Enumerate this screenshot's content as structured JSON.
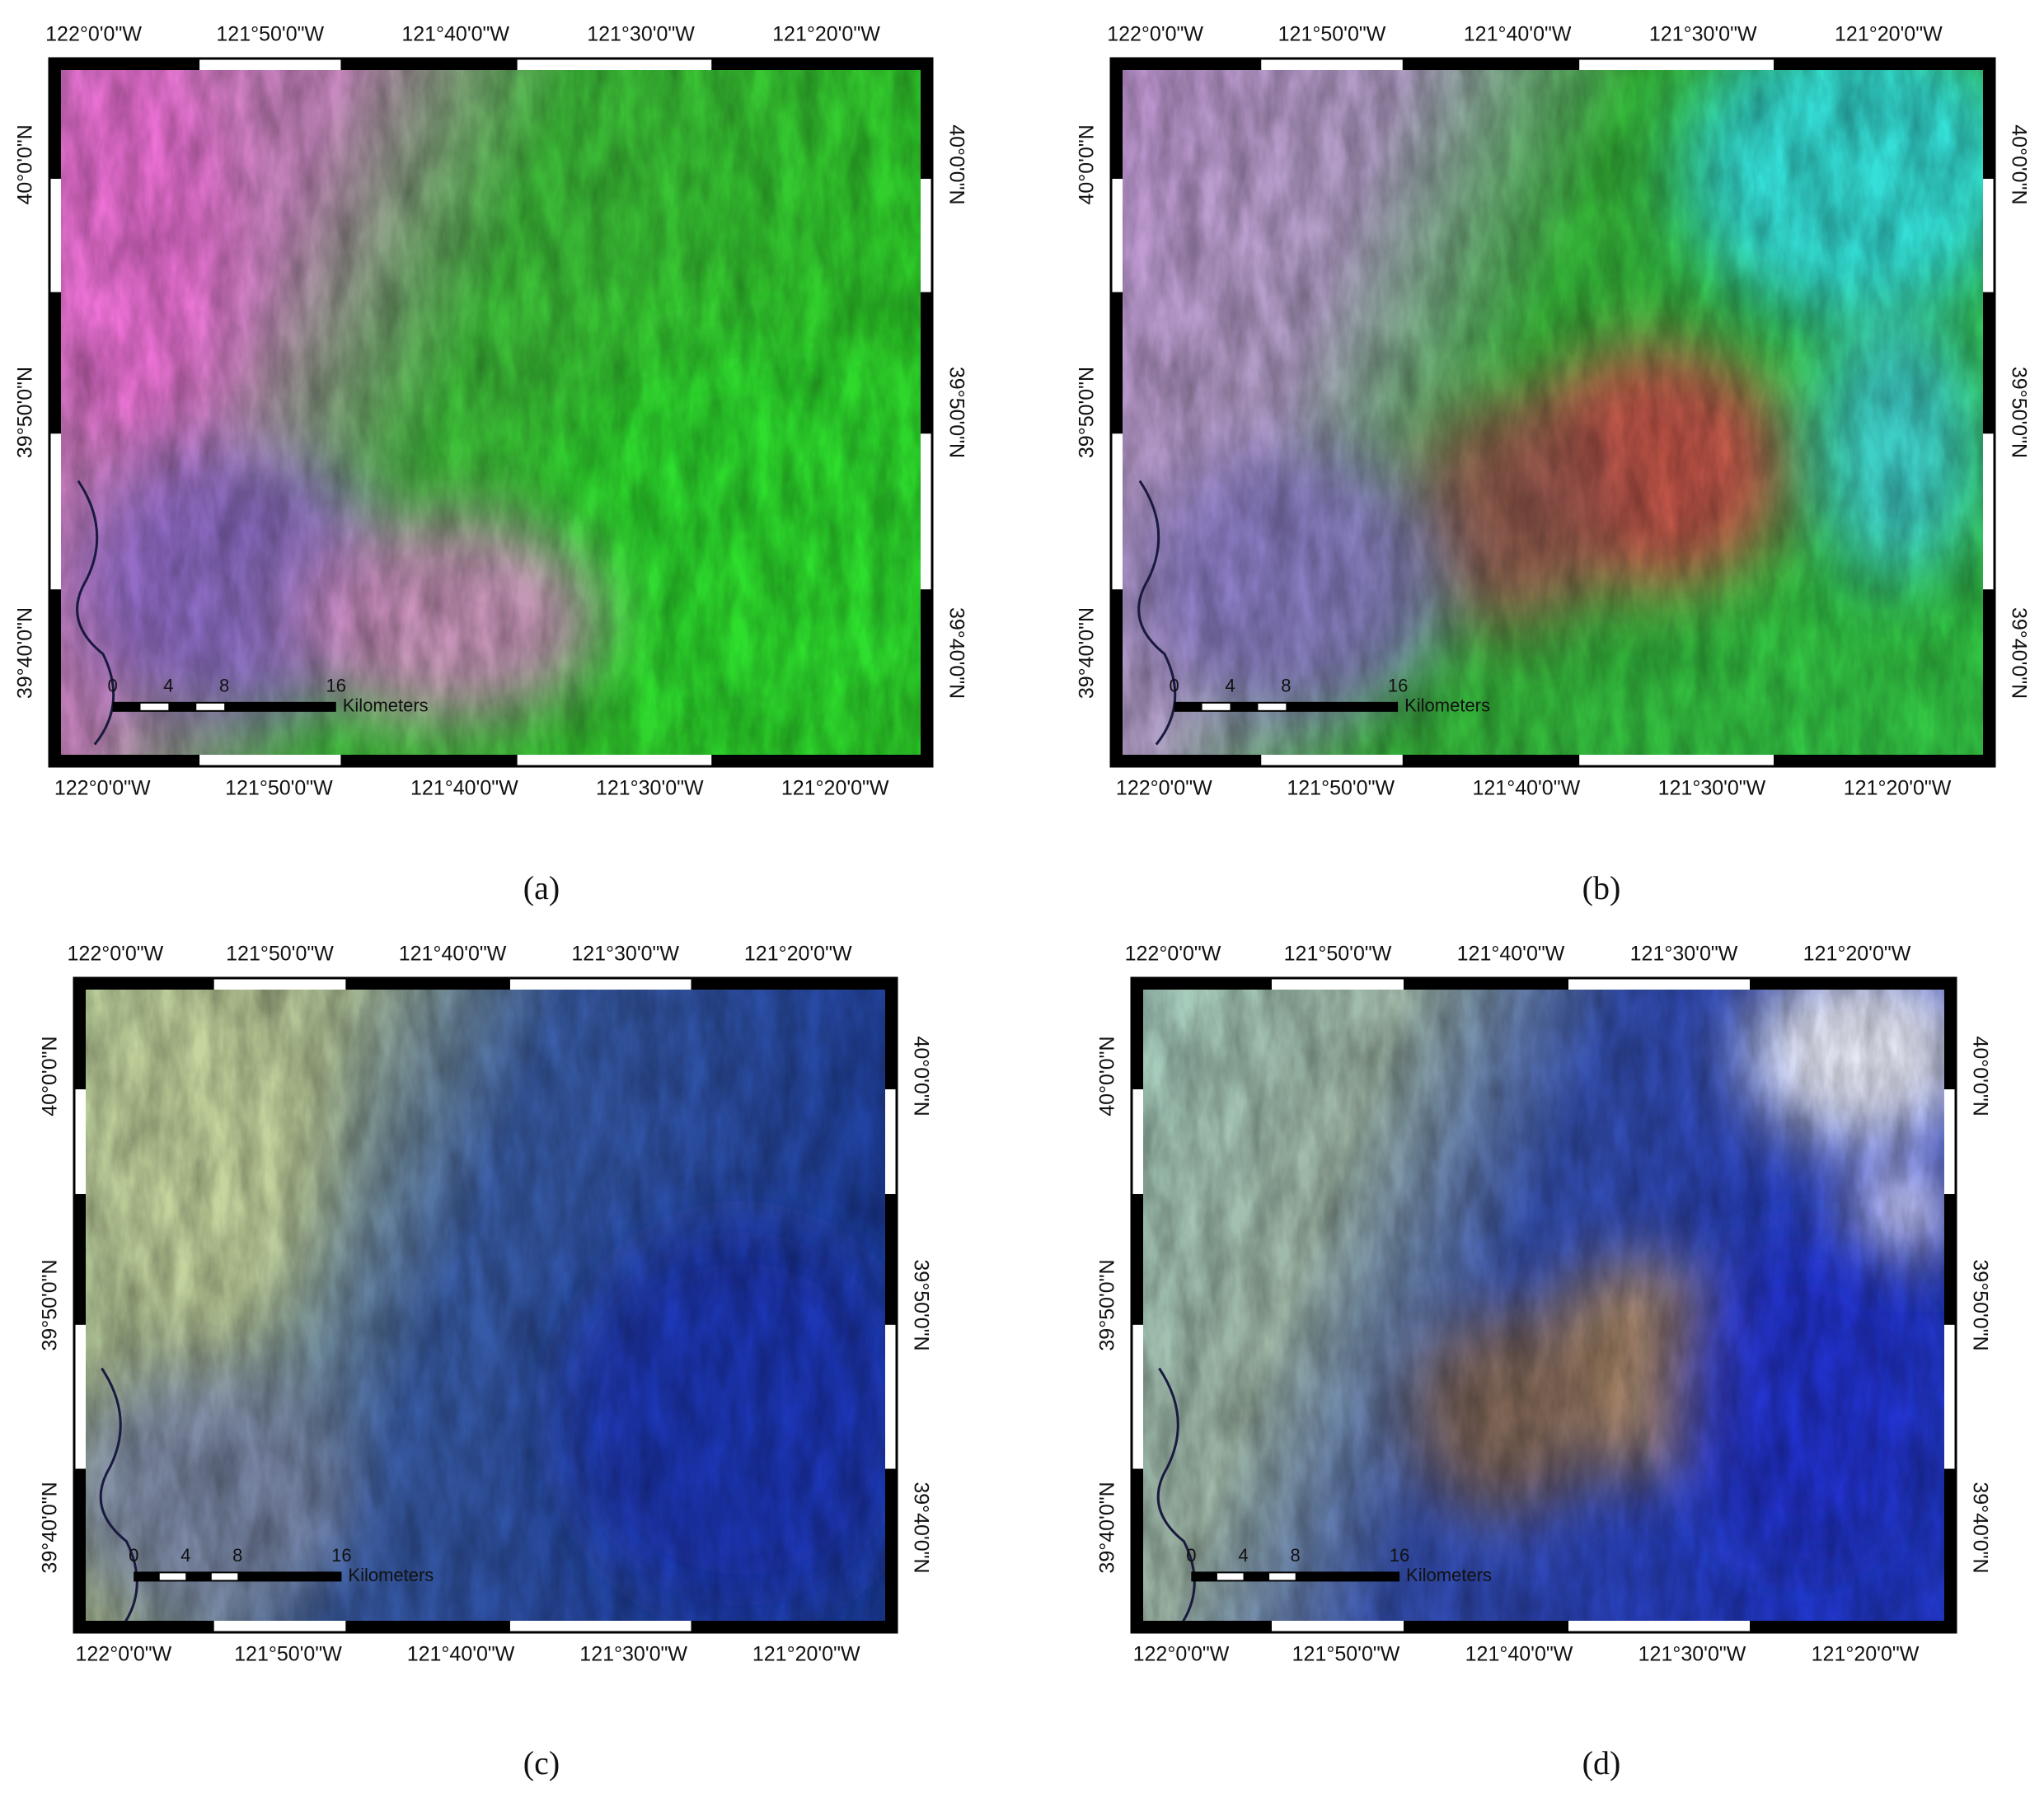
{
  "panels": [
    {
      "caption": "(a)",
      "top_labels": [
        "122°0'0\"W",
        "121°50'0\"W",
        "121°40'0\"W",
        "121°30'0\"W",
        "121°20'0\"W"
      ],
      "bottom_labels": [
        "122°0'0\"W",
        "121°50'0\"W",
        "121°40'0\"W",
        "121°30'0\"W",
        "121°20'0\"W"
      ],
      "left_labels": [
        "40°0'0\"N",
        "39°50'0\"N",
        "39°40'0\"N"
      ],
      "right_labels": [
        "40°0'0\"N",
        "39°50'0\"N",
        "39°40'0\"N"
      ],
      "scale_labels": [
        "0",
        "4",
        "8",
        "16",
        "Kilometers"
      ]
    },
    {
      "caption": "(b)",
      "top_labels": [
        "122°0'0\"W",
        "121°50'0\"W",
        "121°40'0\"W",
        "121°30'0\"W",
        "121°20'0\"W"
      ],
      "bottom_labels": [
        "122°0'0\"W",
        "121°50'0\"W",
        "121°40'0\"W",
        "121°30'0\"W",
        "121°20'0\"W"
      ],
      "left_labels": [
        "40°0'0\"N",
        "39°50'0\"N",
        "39°40'0\"N"
      ],
      "right_labels": [
        "40°0'0\"N",
        "39°50'0\"N",
        "39°40'0\"N"
      ],
      "scale_labels": [
        "0",
        "4",
        "8",
        "16",
        "Kilometers"
      ]
    },
    {
      "caption": "(c)",
      "top_labels": [
        "122°0'0\"W",
        "121°50'0\"W",
        "121°40'0\"W",
        "121°30'0\"W",
        "121°20'0\"W"
      ],
      "bottom_labels": [
        "122°0'0\"W",
        "121°50'0\"W",
        "121°40'0\"W",
        "121°30'0\"W",
        "121°20'0\"W"
      ],
      "left_labels": [
        "40°0'0\"N",
        "39°50'0\"N",
        "39°40'0\"N"
      ],
      "right_labels": [
        "40°0'0\"N",
        "39°50'0\"N",
        "39°40'0\"N"
      ],
      "scale_labels": [
        "0",
        "4",
        "8",
        "16",
        "Kilometers"
      ]
    },
    {
      "caption": "(d)",
      "top_labels": [
        "122°0'0\"W",
        "121°50'0\"W",
        "121°40'0\"W",
        "121°30'0\"W",
        "121°20'0\"W"
      ],
      "bottom_labels": [
        "122°0'0\"W",
        "121°50'0\"W",
        "121°40'0\"W",
        "121°30'0\"W",
        "121°20'0\"W"
      ],
      "left_labels": [
        "40°0'0\"N",
        "39°50'0\"N",
        "39°40'0\"N"
      ],
      "right_labels": [
        "40°0'0\"N",
        "39°50'0\"N",
        "39°40'0\"N"
      ],
      "scale_labels": [
        "0",
        "4",
        "8",
        "16",
        "Kilometers"
      ]
    }
  ]
}
